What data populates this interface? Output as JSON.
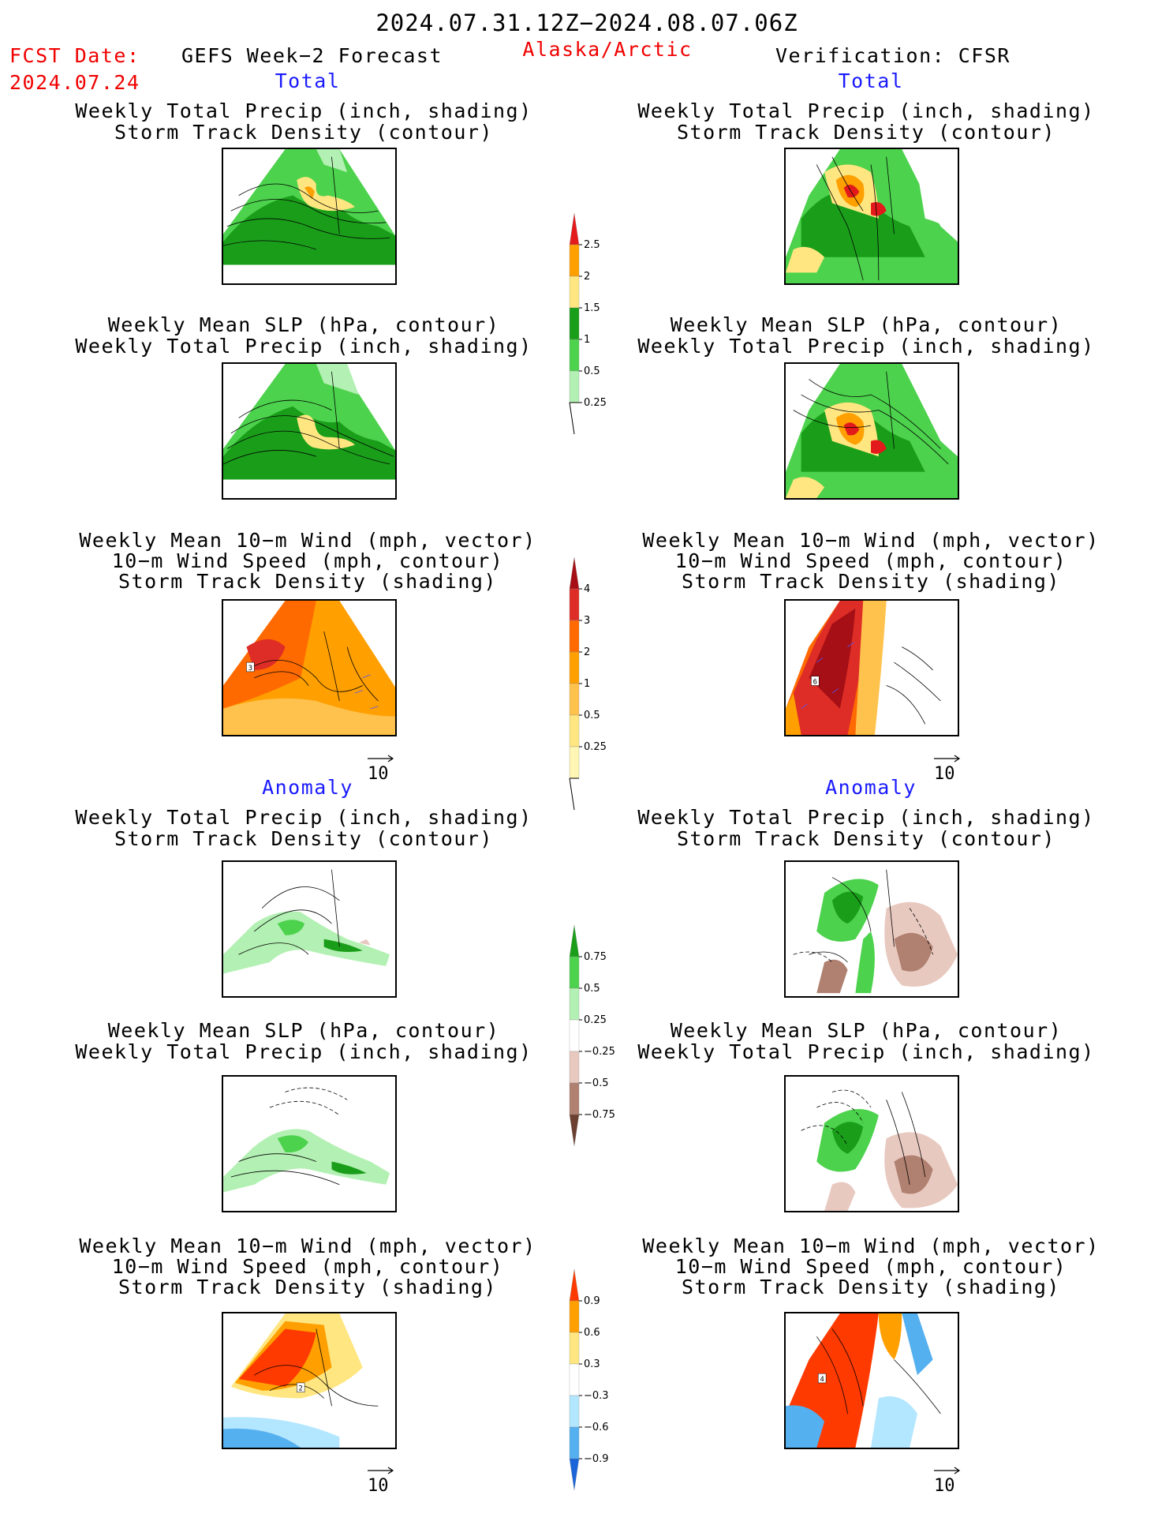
{
  "header": {
    "period": "2024.07.31.12Z−2024.08.07.06Z",
    "fcst_label": "FCST Date:",
    "fcst_date": "2024.07.24",
    "model": "GEFS Week−2 Forecast",
    "region": "Alaska/Arctic",
    "verification": "Verification: CFSR"
  },
  "sections": {
    "total": "Total",
    "anomaly": "Anomaly"
  },
  "panel_titles": {
    "precip_storm": [
      "Weekly Total Precip (inch, shading)",
      "Storm Track Density (contour)"
    ],
    "slp_precip": [
      "Weekly Mean SLP (hPa, contour)",
      "Weekly Total Precip (inch, shading)"
    ],
    "wind_storm": [
      "Weekly Mean 10−m Wind (mph, vector)",
      "10−m Wind Speed (mph, contour)",
      "Storm Track Density (shading)"
    ]
  },
  "vector_ref": "10",
  "map_labels": {
    "fcst_total_wind": "3",
    "cfsr_total_wind": "6",
    "fcst_anom_wind": "2",
    "cfsr_anom_wind": "4"
  },
  "colorbars": {
    "total_precip": {
      "labels": [
        "2.5",
        "2",
        "1.5",
        "1",
        "0.5",
        "0.25"
      ],
      "colors": [
        "#e31a1c",
        "#ff9f00",
        "#ffe680",
        "#1a9e1a",
        "#4cd24c",
        "#b3f0b3"
      ]
    },
    "total_storm": {
      "labels": [
        "4",
        "3",
        "2",
        "1",
        "0.5",
        "0.25"
      ],
      "colors": [
        "#a50f15",
        "#de2d26",
        "#ff6a00",
        "#ff9f00",
        "#ffc24d",
        "#ffe680",
        "#fff6b3"
      ]
    },
    "anom_precip": {
      "labels": [
        "0.75",
        "0.5",
        "0.25",
        "−0.25",
        "−0.5",
        "−0.75"
      ],
      "colors": [
        "#1a9e1a",
        "#4cd24c",
        "#b3f0b3",
        "#ffffff",
        "#e8c9c0",
        "#b08070",
        "#6b4030"
      ]
    },
    "anom_storm": {
      "labels": [
        "0.9",
        "0.6",
        "0.3",
        "−0.3",
        "−0.6",
        "−0.9"
      ],
      "colors": [
        "#ff3a00",
        "#ff9f00",
        "#ffe680",
        "#ffffff",
        "#b3e6ff",
        "#55b0f0",
        "#1a66d9"
      ]
    }
  }
}
